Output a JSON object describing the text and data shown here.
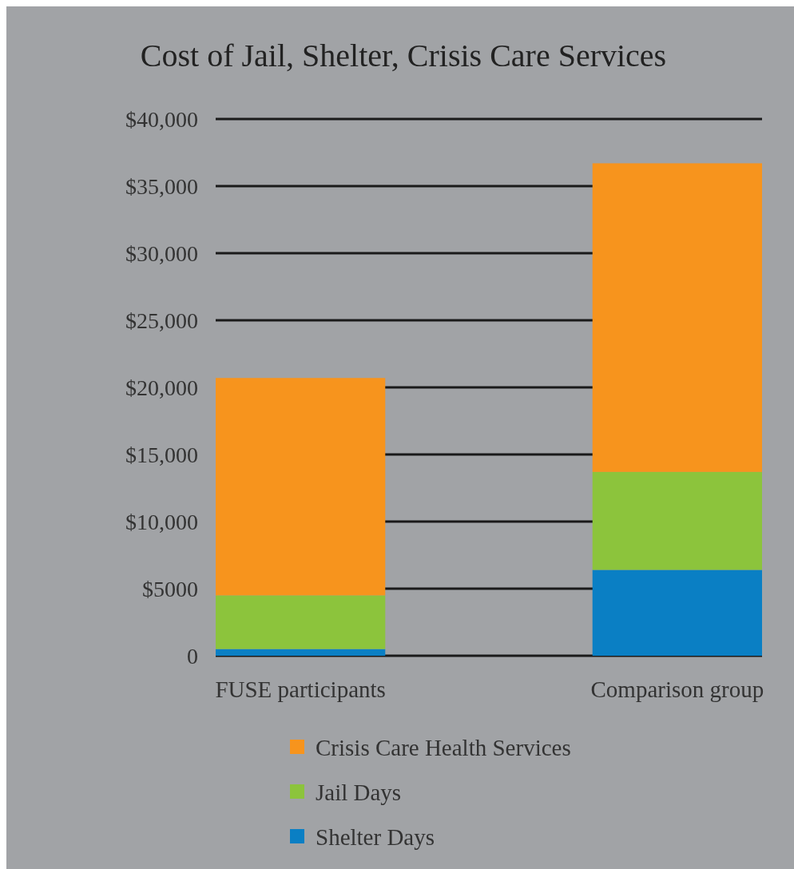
{
  "chart_data": {
    "type": "bar",
    "title": "Cost of Jail, Shelter, Crisis Care Services",
    "categories": [
      "FUSE participants",
      "Comparison group"
    ],
    "stacked": true,
    "series": [
      {
        "name": "Shelter Days",
        "color": "#0a7fc4",
        "values": [
          500,
          6400
        ]
      },
      {
        "name": "Jail Days",
        "color": "#8cc43c",
        "values": [
          4000,
          7300
        ]
      },
      {
        "name": "Crisis Care Health Services",
        "color": "#f7941d",
        "values": [
          16200,
          23000
        ]
      }
    ],
    "ylim": [
      0,
      40000
    ],
    "yticks": [
      {
        "value": 0,
        "label": "0"
      },
      {
        "value": 5000,
        "label": "$5000"
      },
      {
        "value": 10000,
        "label": "$10,000"
      },
      {
        "value": 15000,
        "label": "$15,000"
      },
      {
        "value": 20000,
        "label": "$20,000"
      },
      {
        "value": 25000,
        "label": "$25,000"
      },
      {
        "value": 30000,
        "label": "$30,000"
      },
      {
        "value": 35000,
        "label": "$35,000"
      },
      {
        "value": 40000,
        "label": "$40,000"
      }
    ],
    "grid": "y",
    "legend": "bottom"
  }
}
